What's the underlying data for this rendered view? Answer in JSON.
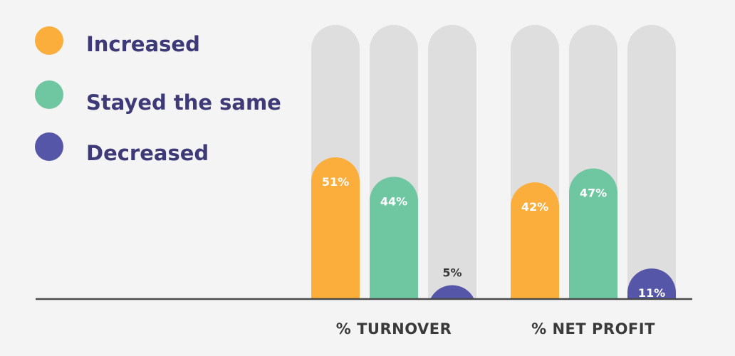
{
  "chart_data": {
    "type": "bar",
    "title": "",
    "xlabel": "",
    "ylabel": "",
    "ylim": [
      0,
      100
    ],
    "grid": false,
    "legend_position": "top-left",
    "categories": [
      "% TURNOVER",
      "% NET PROFIT"
    ],
    "series": [
      {
        "name": "Increased",
        "color": "#fbae3c",
        "label_color": "#ffffff",
        "values": [
          51,
          42
        ],
        "labels": [
          "51%",
          "42%"
        ]
      },
      {
        "name": "Stayed the same",
        "color": "#6fc7a1",
        "label_color": "#ffffff",
        "values": [
          44,
          47
        ],
        "labels": [
          "44%",
          "47%"
        ]
      },
      {
        "name": "Decreased",
        "color": "#5556a8",
        "label_color": "#ffffff",
        "values": [
          5,
          11
        ],
        "labels": [
          "5%",
          "11%"
        ]
      }
    ],
    "track_color": "#dededf",
    "baseline_color": "#4a4a4a"
  }
}
